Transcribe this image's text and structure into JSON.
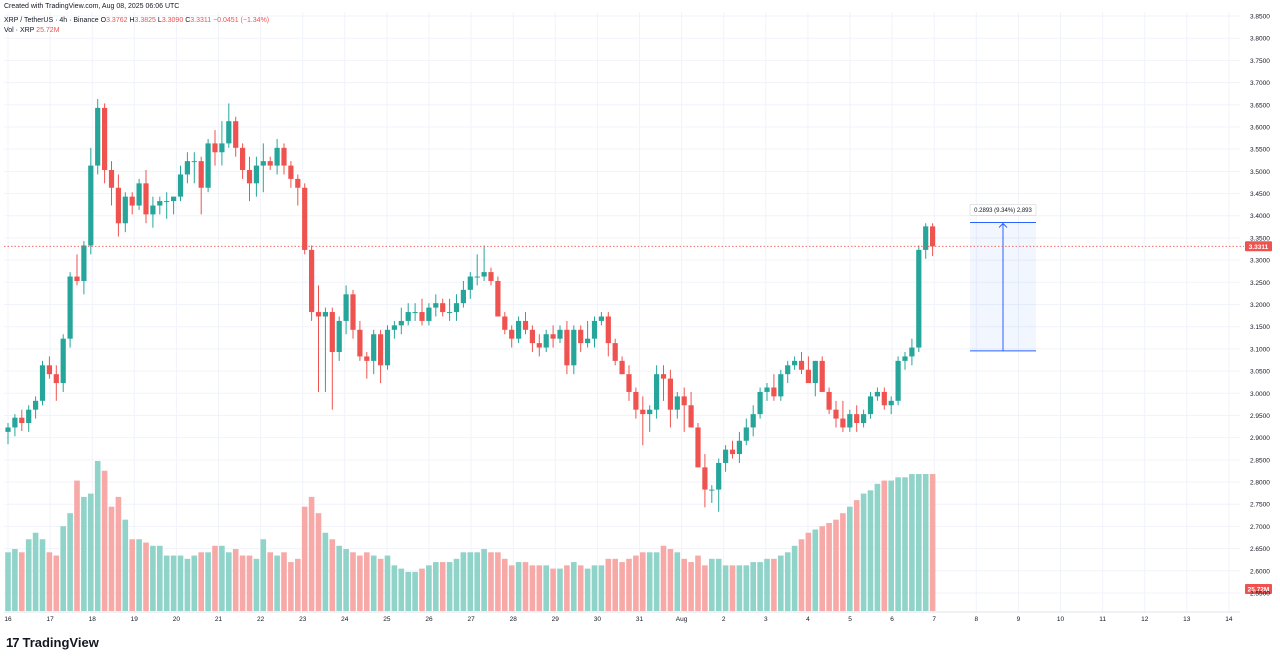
{
  "created": "Created with TradingView.com, Aug 08, 2025 06:06 UTC",
  "legend": {
    "symbol": "XRP / TetherUS · 4h · Binance",
    "o_label": "O",
    "o": "3.3762",
    "h_label": "H",
    "h": "3.3825",
    "l_label": "L",
    "l": "3.3090",
    "c_label": "C",
    "c": "3.3311",
    "change": "−0.0451 (−1.34%)",
    "vol_label": "Vol · XRP",
    "vol_value": "25.72M"
  },
  "brand": {
    "logo_text": "TradingView",
    "mark": "17"
  },
  "colors": {
    "up": "#26a69a",
    "down": "#ef5350",
    "vol_up": "#8fd3c9",
    "vol_down": "#f7a9a7",
    "measure": "#2962ff"
  },
  "chart_data": {
    "type": "candlestick",
    "symbol": "XRP / TetherUS",
    "interval": "4h",
    "exchange": "Binance",
    "y_ticks": [
      "3.8500",
      "3.8000",
      "3.7500",
      "3.7000",
      "3.6500",
      "3.6000",
      "3.5500",
      "3.5000",
      "3.4500",
      "3.4000",
      "3.3500",
      "3.3000",
      "3.2500",
      "3.2000",
      "3.1500",
      "3.1000",
      "3.0500",
      "3.0000",
      "2.9500",
      "2.9000",
      "2.8500",
      "2.8000",
      "2.7500",
      "2.7000",
      "2.6500",
      "2.6000",
      "2.5500"
    ],
    "ylim": [
      2.52,
      3.87
    ],
    "x_ticks": [
      "16",
      "17",
      "18",
      "19",
      "20",
      "21",
      "22",
      "23",
      "24",
      "25",
      "26",
      "27",
      "28",
      "29",
      "30",
      "31",
      "Aug",
      "2",
      "3",
      "4",
      "5",
      "6",
      "7",
      "8",
      "9",
      "10",
      "11",
      "12",
      "13",
      "14"
    ],
    "current_price": "3.3311",
    "current_volume": "25.72M",
    "measure_label": "0.2893 (9.34%) 2,893",
    "measure": {
      "from": 3.0955,
      "to": 3.3848
    },
    "candles": [
      [
        2.913,
        2.933,
        2.885,
        2.923
      ],
      [
        2.923,
        2.953,
        2.903,
        2.945
      ],
      [
        2.945,
        2.963,
        2.915,
        2.933
      ],
      [
        2.933,
        2.973,
        2.913,
        2.963
      ],
      [
        2.963,
        2.993,
        2.943,
        2.983
      ],
      [
        2.983,
        3.073,
        2.973,
        3.063
      ],
      [
        3.063,
        3.083,
        3.033,
        3.043
      ],
      [
        3.043,
        3.063,
        2.983,
        3.023
      ],
      [
        3.023,
        3.133,
        3.003,
        3.123
      ],
      [
        3.123,
        3.273,
        3.103,
        3.263
      ],
      [
        3.263,
        3.313,
        3.243,
        3.253
      ],
      [
        3.253,
        3.343,
        3.223,
        3.333
      ],
      [
        3.333,
        3.553,
        3.313,
        3.513
      ],
      [
        3.513,
        3.663,
        3.493,
        3.643
      ],
      [
        3.643,
        3.653,
        3.473,
        3.503
      ],
      [
        3.503,
        3.523,
        3.423,
        3.463
      ],
      [
        3.463,
        3.493,
        3.353,
        3.383
      ],
      [
        3.383,
        3.453,
        3.363,
        3.443
      ],
      [
        3.443,
        3.453,
        3.403,
        3.423
      ],
      [
        3.423,
        3.483,
        3.413,
        3.473
      ],
      [
        3.473,
        3.503,
        3.383,
        3.403
      ],
      [
        3.403,
        3.443,
        3.373,
        3.423
      ],
      [
        3.423,
        3.443,
        3.403,
        3.433
      ],
      [
        3.433,
        3.453,
        3.393,
        3.433
      ],
      [
        3.433,
        3.443,
        3.403,
        3.443
      ],
      [
        3.443,
        3.513,
        3.433,
        3.493
      ],
      [
        3.493,
        3.543,
        3.473,
        3.523
      ],
      [
        3.523,
        3.543,
        3.473,
        3.523
      ],
      [
        3.523,
        3.533,
        3.403,
        3.463
      ],
      [
        3.463,
        3.573,
        3.453,
        3.563
      ],
      [
        3.563,
        3.593,
        3.513,
        3.543
      ],
      [
        3.543,
        3.613,
        3.513,
        3.563
      ],
      [
        3.563,
        3.653,
        3.553,
        3.613
      ],
      [
        3.613,
        3.623,
        3.533,
        3.553
      ],
      [
        3.553,
        3.563,
        3.483,
        3.503
      ],
      [
        3.503,
        3.533,
        3.433,
        3.473
      ],
      [
        3.473,
        3.533,
        3.443,
        3.513
      ],
      [
        3.513,
        3.563,
        3.453,
        3.523
      ],
      [
        3.523,
        3.533,
        3.503,
        3.513
      ],
      [
        3.513,
        3.573,
        3.493,
        3.553
      ],
      [
        3.553,
        3.563,
        3.493,
        3.513
      ],
      [
        3.513,
        3.523,
        3.463,
        3.483
      ],
      [
        3.483,
        3.493,
        3.423,
        3.463
      ],
      [
        3.463,
        3.473,
        3.313,
        3.323
      ],
      [
        3.323,
        3.333,
        3.163,
        3.183
      ],
      [
        3.183,
        3.243,
        3.003,
        3.173
      ],
      [
        3.173,
        3.193,
        3.003,
        3.183
      ],
      [
        3.183,
        3.193,
        2.963,
        3.093
      ],
      [
        3.093,
        3.173,
        3.073,
        3.163
      ],
      [
        3.163,
        3.243,
        3.133,
        3.223
      ],
      [
        3.223,
        3.233,
        3.123,
        3.143
      ],
      [
        3.143,
        3.163,
        3.073,
        3.083
      ],
      [
        3.083,
        3.093,
        3.033,
        3.073
      ],
      [
        3.073,
        3.143,
        3.043,
        3.133
      ],
      [
        3.133,
        3.143,
        3.023,
        3.063
      ],
      [
        3.063,
        3.153,
        3.053,
        3.143
      ],
      [
        3.143,
        3.163,
        3.123,
        3.153
      ],
      [
        3.153,
        3.193,
        3.133,
        3.163
      ],
      [
        3.163,
        3.203,
        3.153,
        3.183
      ],
      [
        3.183,
        3.203,
        3.163,
        3.183
      ],
      [
        3.183,
        3.213,
        3.153,
        3.163
      ],
      [
        3.163,
        3.203,
        3.153,
        3.193
      ],
      [
        3.193,
        3.223,
        3.173,
        3.203
      ],
      [
        3.203,
        3.213,
        3.173,
        3.183
      ],
      [
        3.183,
        3.213,
        3.163,
        3.183
      ],
      [
        3.183,
        3.223,
        3.163,
        3.203
      ],
      [
        3.203,
        3.253,
        3.193,
        3.233
      ],
      [
        3.233,
        3.273,
        3.213,
        3.263
      ],
      [
        3.263,
        3.313,
        3.243,
        3.263
      ],
      [
        3.263,
        3.333,
        3.253,
        3.273
      ],
      [
        3.273,
        3.283,
        3.243,
        3.253
      ],
      [
        3.253,
        3.263,
        3.173,
        3.173
      ],
      [
        3.173,
        3.183,
        3.133,
        3.143
      ],
      [
        3.143,
        3.153,
        3.103,
        3.123
      ],
      [
        3.123,
        3.173,
        3.113,
        3.163
      ],
      [
        3.163,
        3.183,
        3.133,
        3.143
      ],
      [
        3.143,
        3.153,
        3.093,
        3.113
      ],
      [
        3.113,
        3.133,
        3.083,
        3.103
      ],
      [
        3.103,
        3.143,
        3.093,
        3.133
      ],
      [
        3.133,
        3.153,
        3.103,
        3.123
      ],
      [
        3.123,
        3.153,
        3.113,
        3.143
      ],
      [
        3.143,
        3.163,
        3.043,
        3.063
      ],
      [
        3.063,
        3.153,
        3.043,
        3.143
      ],
      [
        3.143,
        3.153,
        3.093,
        3.113
      ],
      [
        3.113,
        3.163,
        3.103,
        3.123
      ],
      [
        3.123,
        3.173,
        3.103,
        3.163
      ],
      [
        3.163,
        3.183,
        3.153,
        3.173
      ],
      [
        3.173,
        3.183,
        3.083,
        3.113
      ],
      [
        3.113,
        3.123,
        3.063,
        3.073
      ],
      [
        3.073,
        3.083,
        3.043,
        3.043
      ],
      [
        3.043,
        3.063,
        2.983,
        3.003
      ],
      [
        3.003,
        3.013,
        2.943,
        2.963
      ],
      [
        2.963,
        2.993,
        2.883,
        2.953
      ],
      [
        2.953,
        2.973,
        2.913,
        2.963
      ],
      [
        2.963,
        3.063,
        2.943,
        3.043
      ],
      [
        3.043,
        3.063,
        2.983,
        3.033
      ],
      [
        3.033,
        3.053,
        2.923,
        2.963
      ],
      [
        2.963,
        3.003,
        2.943,
        2.993
      ],
      [
        2.993,
        3.013,
        2.913,
        2.973
      ],
      [
        2.973,
        3.003,
        2.923,
        2.923
      ],
      [
        2.923,
        2.933,
        2.833,
        2.833
      ],
      [
        2.833,
        2.863,
        2.743,
        2.783
      ],
      [
        2.783,
        2.793,
        2.753,
        2.783
      ],
      [
        2.783,
        2.853,
        2.733,
        2.843
      ],
      [
        2.843,
        2.883,
        2.823,
        2.873
      ],
      [
        2.873,
        2.893,
        2.853,
        2.863
      ],
      [
        2.863,
        2.913,
        2.843,
        2.893
      ],
      [
        2.893,
        2.943,
        2.883,
        2.923
      ],
      [
        2.923,
        2.973,
        2.903,
        2.953
      ],
      [
        2.953,
        3.013,
        2.943,
        3.003
      ],
      [
        3.003,
        3.023,
        2.983,
        3.013
      ],
      [
        3.013,
        3.043,
        2.983,
        2.993
      ],
      [
        2.993,
        3.053,
        2.983,
        3.043
      ],
      [
        3.043,
        3.073,
        3.023,
        3.063
      ],
      [
        3.063,
        3.083,
        3.053,
        3.073
      ],
      [
        3.073,
        3.093,
        3.043,
        3.053
      ],
      [
        3.053,
        3.083,
        3.023,
        3.023
      ],
      [
        3.023,
        3.073,
        2.993,
        3.073
      ],
      [
        3.073,
        3.083,
        3.003,
        3.003
      ],
      [
        3.003,
        3.013,
        2.953,
        2.963
      ],
      [
        2.963,
        2.983,
        2.923,
        2.943
      ],
      [
        2.943,
        2.983,
        2.913,
        2.923
      ],
      [
        2.923,
        2.963,
        2.913,
        2.953
      ],
      [
        2.953,
        2.973,
        2.913,
        2.933
      ],
      [
        2.933,
        2.963,
        2.923,
        2.953
      ],
      [
        2.953,
        3.003,
        2.943,
        2.993
      ],
      [
        2.993,
        3.013,
        2.983,
        3.003
      ],
      [
        3.003,
        3.013,
        2.963,
        2.973
      ],
      [
        2.973,
        2.993,
        2.953,
        2.983
      ],
      [
        2.983,
        3.083,
        2.973,
        3.073
      ],
      [
        3.073,
        3.093,
        3.053,
        3.083
      ],
      [
        3.083,
        3.123,
        3.063,
        3.103
      ],
      [
        3.103,
        3.333,
        3.093,
        3.323
      ],
      [
        3.323,
        3.383,
        3.303,
        3.376
      ],
      [
        3.376,
        3.383,
        3.309,
        3.331
      ]
    ],
    "volumes": [
      18,
      19,
      18,
      22,
      24,
      22,
      18,
      17,
      26,
      30,
      40,
      35,
      36,
      46,
      43,
      32,
      35,
      28,
      22,
      22,
      21,
      20,
      20,
      17,
      17,
      17,
      16,
      17,
      18,
      18,
      20,
      20,
      18,
      19,
      17,
      17,
      16,
      22,
      18,
      17,
      18,
      15,
      16,
      32,
      35,
      30,
      24,
      22,
      20,
      19,
      18,
      17,
      18,
      17,
      16,
      17,
      14,
      13,
      12,
      12,
      13,
      14,
      15,
      15,
      15,
      16,
      18,
      18,
      18,
      19,
      18,
      18,
      16,
      14,
      15,
      15,
      14,
      14,
      14,
      13,
      13,
      14,
      15,
      14,
      13,
      14,
      14,
      16,
      16,
      15,
      16,
      17,
      18,
      18,
      18,
      20,
      19,
      18,
      16,
      15,
      17,
      14,
      16,
      16,
      14,
      14,
      14,
      14,
      15,
      15,
      16,
      16,
      17,
      18,
      20,
      22,
      24,
      25,
      26,
      27,
      28,
      30,
      32,
      34,
      36,
      37,
      39,
      40,
      40,
      41,
      41,
      42,
      42,
      42,
      42
    ]
  }
}
